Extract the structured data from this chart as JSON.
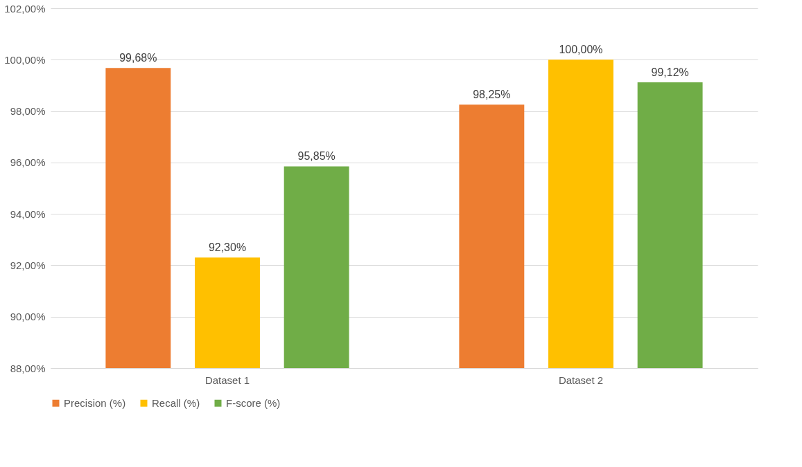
{
  "chart_data": {
    "type": "bar",
    "categories": [
      "Dataset 1",
      "Dataset 2"
    ],
    "series": [
      {
        "name": "Precision (%)",
        "color": "#ed7d31",
        "values": [
          99.68,
          98.25
        ],
        "value_labels": [
          "99,68%",
          "98,25%"
        ]
      },
      {
        "name": "Recall (%)",
        "color": "#ffc000",
        "values": [
          92.3,
          100.0
        ],
        "value_labels": [
          "92,30%",
          "100,00%"
        ]
      },
      {
        "name": "F-score (%)",
        "color": "#70ad47",
        "values": [
          95.85,
          99.12
        ],
        "value_labels": [
          "95,85%",
          "99,12%"
        ]
      }
    ],
    "ylim": [
      88,
      102
    ],
    "yticks": [
      {
        "value": 88,
        "label": "88,00%"
      },
      {
        "value": 90,
        "label": "90,00%"
      },
      {
        "value": 92,
        "label": "92,00%"
      },
      {
        "value": 94,
        "label": "94,00%"
      },
      {
        "value": 96,
        "label": "96,00%"
      },
      {
        "value": 98,
        "label": "98,00%"
      },
      {
        "value": 100,
        "label": "100,00%"
      },
      {
        "value": 102,
        "label": "102,00%"
      }
    ],
    "grid": "y",
    "legend": "bottom"
  }
}
